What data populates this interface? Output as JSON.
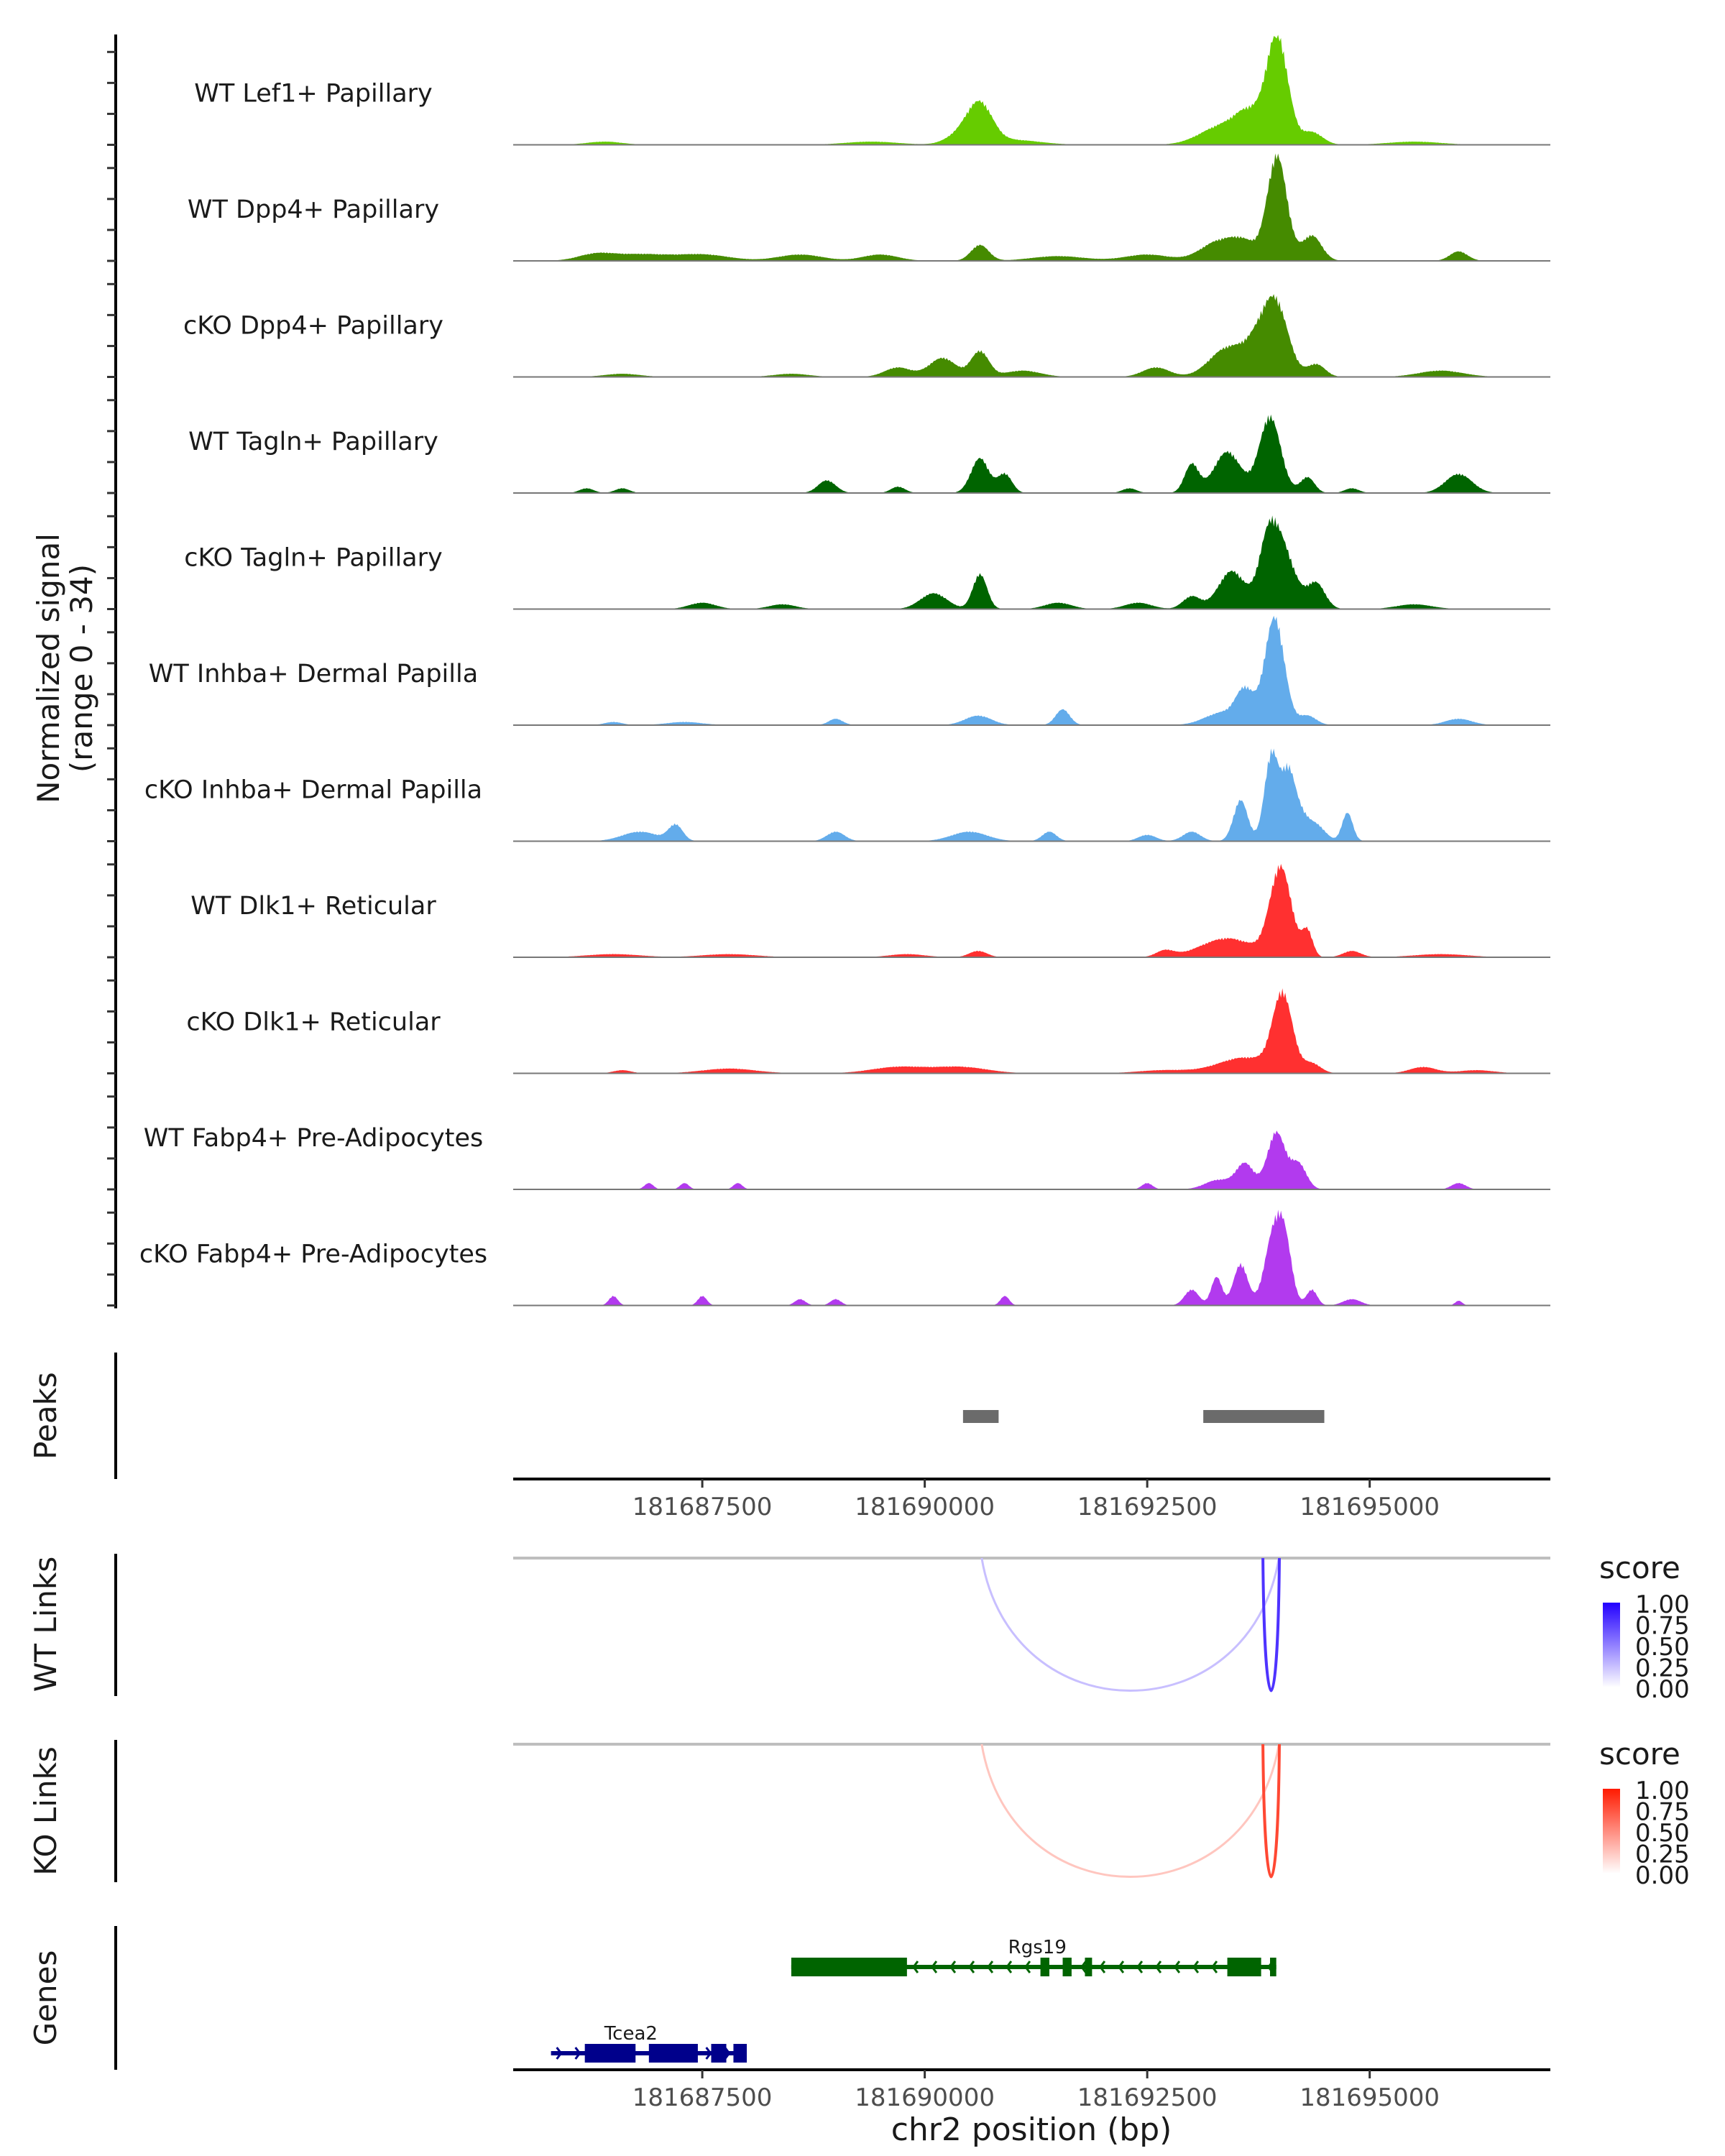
{
  "chart_data": {
    "type": "area",
    "title": "",
    "region": {
      "chrom": "chr2",
      "start": 181685375,
      "end": 181697030
    },
    "xlabel": "chr2 position (bp)",
    "x_ticks": [
      181687500,
      181690000,
      181692500,
      181695000
    ],
    "coverage": {
      "ylabel_line1": "Normalized signal",
      "ylabel_line2": "(range 0 - 34)",
      "ylim": [
        0,
        34
      ],
      "tracks": [
        {
          "name": "WT Lef1+ Papillary",
          "color": "#66CC00",
          "peaks": [
            [
              181690620,
              12,
              140
            ],
            [
              181690400,
              3,
              160
            ],
            [
              181693350,
              6,
              250
            ],
            [
              181693650,
              8,
              150
            ],
            [
              181693960,
              34,
              120
            ],
            [
              181694350,
              4,
              120
            ],
            [
              181686400,
              1,
              200
            ],
            [
              181689400,
              1,
              300
            ],
            [
              181691000,
              1.5,
              300
            ],
            [
              181695500,
              1,
              300
            ]
          ]
        },
        {
          "name": "WT Dpp4+ Papillary",
          "color": "#458B00",
          "peaks": [
            [
              181693960,
              33,
              110
            ],
            [
              181694350,
              8,
              110
            ],
            [
              181693300,
              6,
              200
            ],
            [
              181693600,
              5,
              150
            ],
            [
              181690620,
              5,
              100
            ],
            [
              181686300,
              2,
              200
            ],
            [
              181686800,
              2,
              300
            ],
            [
              181687500,
              2,
              300
            ],
            [
              181688600,
              2,
              250
            ],
            [
              181689500,
              2,
              200
            ],
            [
              181691500,
              1.5,
              300
            ],
            [
              181692500,
              2,
              250
            ],
            [
              181696000,
              3,
              100
            ]
          ]
        },
        {
          "name": "cKO Dpp4+ Papillary",
          "color": "#458B00",
          "peaks": [
            [
              181693950,
              21,
              140
            ],
            [
              181693400,
              9,
              200
            ],
            [
              181693750,
              9,
              150
            ],
            [
              181690620,
              8,
              100
            ],
            [
              181690200,
              6,
              150
            ],
            [
              181689700,
              3,
              150
            ],
            [
              181691100,
              2,
              200
            ],
            [
              181692600,
              3,
              150
            ],
            [
              181694400,
              4,
              100
            ],
            [
              181686600,
              1,
              200
            ],
            [
              181688500,
              1,
              200
            ],
            [
              181695800,
              2,
              250
            ]
          ]
        },
        {
          "name": "WT Tagln+ Papillary",
          "color": "#006400",
          "peaks": [
            [
              181693880,
              24,
              120
            ],
            [
              181693400,
              13,
              150
            ],
            [
              181693000,
              9,
              80
            ],
            [
              181690620,
              11,
              100
            ],
            [
              181690900,
              6,
              80
            ],
            [
              181694300,
              5,
              80
            ],
            [
              181688900,
              4,
              100
            ],
            [
              181689700,
              2,
              80
            ],
            [
              181696000,
              6,
              150
            ],
            [
              181686200,
              1.5,
              80
            ],
            [
              181686600,
              1.5,
              80
            ],
            [
              181692300,
              1.5,
              80
            ],
            [
              181694800,
              1.5,
              80
            ]
          ]
        },
        {
          "name": "cKO Tagln+ Papillary",
          "color": "#006400",
          "peaks": [
            [
              181694000,
              20,
              150
            ],
            [
              181693450,
              12,
              150
            ],
            [
              181693850,
              14,
              100
            ],
            [
              181690620,
              11,
              80
            ],
            [
              181690100,
              5,
              150
            ],
            [
              181694400,
              8,
              100
            ],
            [
              181693000,
              4,
              100
            ],
            [
              181687500,
              2,
              150
            ],
            [
              181688400,
              1.5,
              150
            ],
            [
              181691500,
              2,
              150
            ],
            [
              181692400,
              2,
              150
            ],
            [
              181695500,
              1.5,
              200
            ]
          ]
        },
        {
          "name": "WT Inhba+ Dermal Papilla",
          "color": "#63ACEB",
          "peaks": [
            [
              181693930,
              34,
              110
            ],
            [
              181693600,
              10,
              100
            ],
            [
              181693350,
              4,
              200
            ],
            [
              181694300,
              3,
              100
            ],
            [
              181690600,
              3,
              150
            ],
            [
              181691550,
              5,
              80
            ],
            [
              181689000,
              2,
              80
            ],
            [
              181687300,
              1,
              200
            ],
            [
              181696000,
              2,
              150
            ],
            [
              181686500,
              1,
              100
            ]
          ]
        },
        {
          "name": "cKO Inhba+ Dermal Papilla",
          "color": "#63ACEB",
          "peaks": [
            [
              181693900,
              28,
              80
            ],
            [
              181694080,
              18,
              70
            ],
            [
              181693550,
              13,
              80
            ],
            [
              181694200,
              9,
              90
            ],
            [
              181694750,
              9,
              60
            ],
            [
              181694400,
              5,
              100
            ],
            [
              181686800,
              3,
              200
            ],
            [
              181687200,
              5,
              80
            ],
            [
              181689000,
              3,
              100
            ],
            [
              181690500,
              3,
              200
            ],
            [
              181691400,
              3,
              80
            ],
            [
              181693000,
              3,
              100
            ],
            [
              181692500,
              2,
              100
            ]
          ]
        },
        {
          "name": "WT Dlk1+ Reticular",
          "color": "#FF3030",
          "peaks": [
            [
              181694000,
              28,
              120
            ],
            [
              181693400,
              6,
              300
            ],
            [
              181694300,
              8,
              60
            ],
            [
              181692700,
              2,
              100
            ],
            [
              181690600,
              2,
              100
            ],
            [
              181686500,
              1,
              300
            ],
            [
              181687800,
              1,
              300
            ],
            [
              181689800,
              1,
              200
            ],
            [
              181694800,
              2,
              100
            ],
            [
              181695800,
              1,
              300
            ]
          ]
        },
        {
          "name": "cKO Dlk1+ Reticular",
          "color": "#FF3030",
          "peaks": [
            [
              181694020,
              24,
              110
            ],
            [
              181693600,
              5,
              300
            ],
            [
              181694350,
              3,
              100
            ],
            [
              181689700,
              2,
              300
            ],
            [
              181690400,
              2,
              300
            ],
            [
              181687800,
              1.5,
              300
            ],
            [
              181686600,
              1,
              100
            ],
            [
              181692700,
              1,
              300
            ],
            [
              181695600,
              2,
              150
            ],
            [
              181696200,
              1,
              200
            ]
          ]
        },
        {
          "name": "WT Fabp4+ Pre-Adipocytes",
          "color": "#B23AEE",
          "peaks": [
            [
              181693950,
              18,
              100
            ],
            [
              181693600,
              8,
              100
            ],
            [
              181694200,
              8,
              90
            ],
            [
              181693300,
              3,
              150
            ],
            [
              181686900,
              2,
              50
            ],
            [
              181687300,
              2,
              50
            ],
            [
              181687900,
              2,
              50
            ],
            [
              181692500,
              2,
              60
            ],
            [
              181696000,
              2,
              80
            ]
          ]
        },
        {
          "name": "cKO Fabp4+ Pre-Adipocytes",
          "color": "#B23AEE",
          "peaks": [
            [
              181693920,
              22,
              100
            ],
            [
              181694050,
              16,
              80
            ],
            [
              181693550,
              13,
              80
            ],
            [
              181693280,
              9,
              60
            ],
            [
              181693000,
              5,
              80
            ],
            [
              181694350,
              5,
              60
            ],
            [
              181686500,
              3,
              50
            ],
            [
              181687500,
              3,
              50
            ],
            [
              181688600,
              2,
              60
            ],
            [
              181689000,
              2,
              60
            ],
            [
              181690900,
              3,
              50
            ],
            [
              181694800,
              2,
              100
            ],
            [
              181696000,
              1.5,
              40
            ]
          ]
        }
      ]
    },
    "peaks_track": {
      "label": "Peaks",
      "color": "#6B6B6B",
      "ranges": [
        [
          181690430,
          181690830
        ],
        [
          181693130,
          181694490
        ]
      ]
    },
    "links": [
      {
        "label": "WT Links",
        "legend_title": "score",
        "legend_ticks": [
          "1.00",
          "0.75",
          "0.50",
          "0.25",
          "0.00"
        ],
        "low_color": "#FFFFFF",
        "high_color": "#2200FF",
        "arcs": [
          {
            "start": 181690640,
            "end": 181693980,
            "score": 0.25
          },
          {
            "start": 181693800,
            "end": 181693985,
            "score": 0.8
          }
        ]
      },
      {
        "label": "KO Links",
        "legend_title": "score",
        "legend_ticks": [
          "1.00",
          "0.75",
          "0.50",
          "0.25",
          "0.00"
        ],
        "low_color": "#FFFFFF",
        "high_color": "#FF1A00",
        "arcs": [
          {
            "start": 181690640,
            "end": 181693980,
            "score": 0.25
          },
          {
            "start": 181693800,
            "end": 181693985,
            "score": 0.8
          }
        ]
      }
    ],
    "genes": {
      "label": "Genes",
      "items": [
        {
          "name": "Rgs19",
          "strand": "-",
          "color": "#006400",
          "row": 0,
          "start": 181688500,
          "end": 181693950,
          "exons": [
            [
              181688500,
              181689800
            ],
            [
              181691300,
              181691400
            ],
            [
              181691550,
              181691650
            ],
            [
              181691800,
              181691880
            ],
            [
              181693400,
              181693780
            ],
            [
              181693880,
              181693950
            ]
          ]
        },
        {
          "name": "Tcea2",
          "strand": "+",
          "color": "#00008B",
          "row": 1,
          "start": 181685800,
          "end": 181688000,
          "exons": [
            [
              181686180,
              181686750
            ],
            [
              181686900,
              181687450
            ],
            [
              181687600,
              181687770
            ],
            [
              181687850,
              181688000
            ]
          ]
        }
      ]
    }
  }
}
